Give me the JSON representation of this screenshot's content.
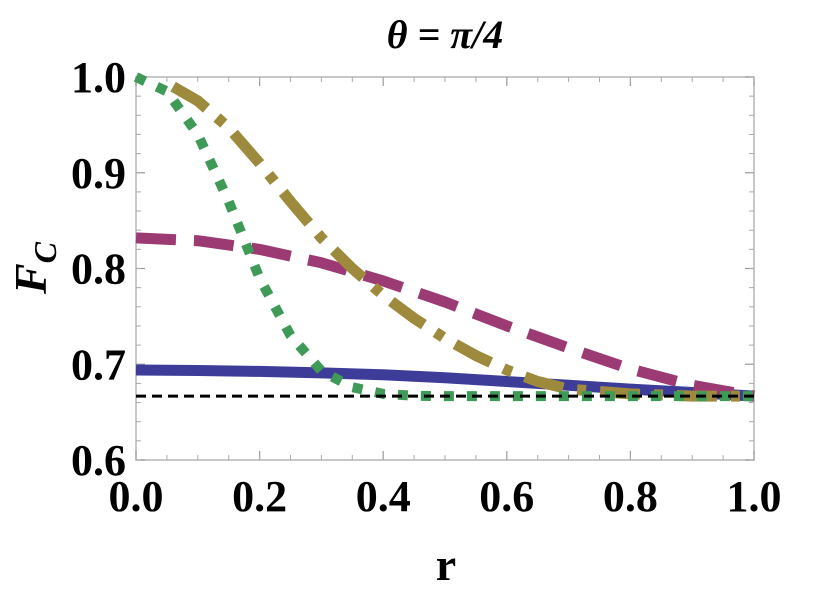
{
  "chart_data": {
    "type": "line",
    "title": "θ = π/4",
    "xlabel": "r",
    "ylabel_main": "F",
    "ylabel_sub": "C",
    "xlim": [
      0,
      1
    ],
    "ylim": [
      0.6,
      1.0
    ],
    "x_ticks": [
      0.0,
      0.2,
      0.4,
      0.6,
      0.8,
      1.0
    ],
    "x_tick_labels": [
      "0.0",
      "0.2",
      "0.4",
      "0.6",
      "0.8",
      "1.0"
    ],
    "y_ticks": [
      0.6,
      0.7,
      0.8,
      0.9,
      1.0
    ],
    "y_tick_labels": [
      "0.6",
      "0.7",
      "0.8",
      "0.9",
      "1.0"
    ],
    "grid": false,
    "series": [
      {
        "style": "solid",
        "color": "#3d3d99",
        "x": [
          0.0,
          0.1,
          0.2,
          0.3,
          0.4,
          0.5,
          0.6,
          0.7,
          0.8,
          0.9,
          1.0
        ],
        "y": [
          0.694,
          0.6935,
          0.6925,
          0.691,
          0.689,
          0.686,
          0.682,
          0.678,
          0.674,
          0.6705,
          0.6667
        ]
      },
      {
        "style": "dashed",
        "color": "#9c3a73",
        "x": [
          0.0,
          0.1,
          0.2,
          0.3,
          0.4,
          0.5,
          0.6,
          0.7,
          0.8,
          0.9,
          1.0
        ],
        "y": [
          0.832,
          0.829,
          0.82,
          0.806,
          0.787,
          0.765,
          0.74,
          0.717,
          0.695,
          0.678,
          0.6667
        ]
      },
      {
        "style": "dashdot",
        "color": "#9e8a3c",
        "x": [
          0.06,
          0.1,
          0.15,
          0.2,
          0.25,
          0.3,
          0.35,
          0.4,
          0.45,
          0.5,
          0.55,
          0.6,
          0.65,
          0.7,
          0.8,
          0.9,
          1.0
        ],
        "y": [
          0.99,
          0.975,
          0.947,
          0.91,
          0.87,
          0.832,
          0.8,
          0.772,
          0.748,
          0.727,
          0.709,
          0.694,
          0.682,
          0.674,
          0.669,
          0.6667,
          0.6667
        ]
      },
      {
        "style": "dotted",
        "color": "#3f9a57",
        "x": [
          0.0,
          0.05,
          0.1,
          0.15,
          0.2,
          0.25,
          0.3,
          0.35,
          0.4,
          0.45,
          0.5,
          0.6,
          0.7,
          0.8,
          0.9,
          1.0
        ],
        "y": [
          1.0,
          0.985,
          0.94,
          0.87,
          0.79,
          0.73,
          0.693,
          0.676,
          0.669,
          0.667,
          0.6667,
          0.6667,
          0.6667,
          0.6667,
          0.6667,
          0.6667
        ]
      },
      {
        "style": "reference",
        "color": "#000000",
        "x": [
          0.0,
          1.0
        ],
        "y": [
          0.6667,
          0.6667
        ]
      }
    ]
  }
}
